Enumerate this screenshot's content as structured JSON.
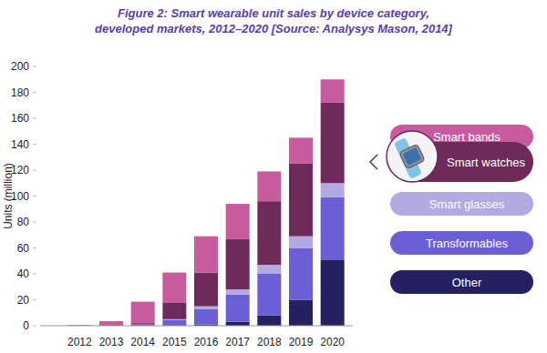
{
  "chart_data": {
    "type": "bar",
    "stacked": true,
    "title": "Figure 2: Smart wearable unit sales by device category, developed markets, 2012–2020 [Source: Analysys Mason, 2014]",
    "y_label": "Units (million)",
    "categories": [
      "2012",
      "2013",
      "2014",
      "2015",
      "2016",
      "2017",
      "2018",
      "2019",
      "2020"
    ],
    "series": [
      {
        "name": "Other",
        "color": "#25205f",
        "values": [
          0,
          0,
          0.5,
          0.5,
          1,
          3,
          8,
          20,
          51
        ]
      },
      {
        "name": "Transformables",
        "color": "#6a5fd4",
        "values": [
          0,
          0,
          0.5,
          4,
          12,
          21,
          32,
          40,
          48
        ]
      },
      {
        "name": "Smart glasses",
        "color": "#b3a9e3",
        "values": [
          0,
          0,
          0,
          0.5,
          2,
          4,
          7,
          9,
          11
        ]
      },
      {
        "name": "Smart watches",
        "color": "#6e2a5a",
        "values": [
          0.3,
          0.5,
          1,
          13,
          26,
          39,
          49,
          56,
          62
        ]
      },
      {
        "name": "Smart bands",
        "color": "#c85a9e",
        "values": [
          0.3,
          3,
          16.5,
          23,
          28,
          27,
          23,
          20,
          18
        ]
      }
    ],
    "ylim": [
      0,
      200
    ],
    "yticks": [
      0,
      20,
      40,
      60,
      80,
      100,
      120,
      140,
      160,
      180,
      200
    ],
    "grid": false,
    "legend": "right"
  }
}
